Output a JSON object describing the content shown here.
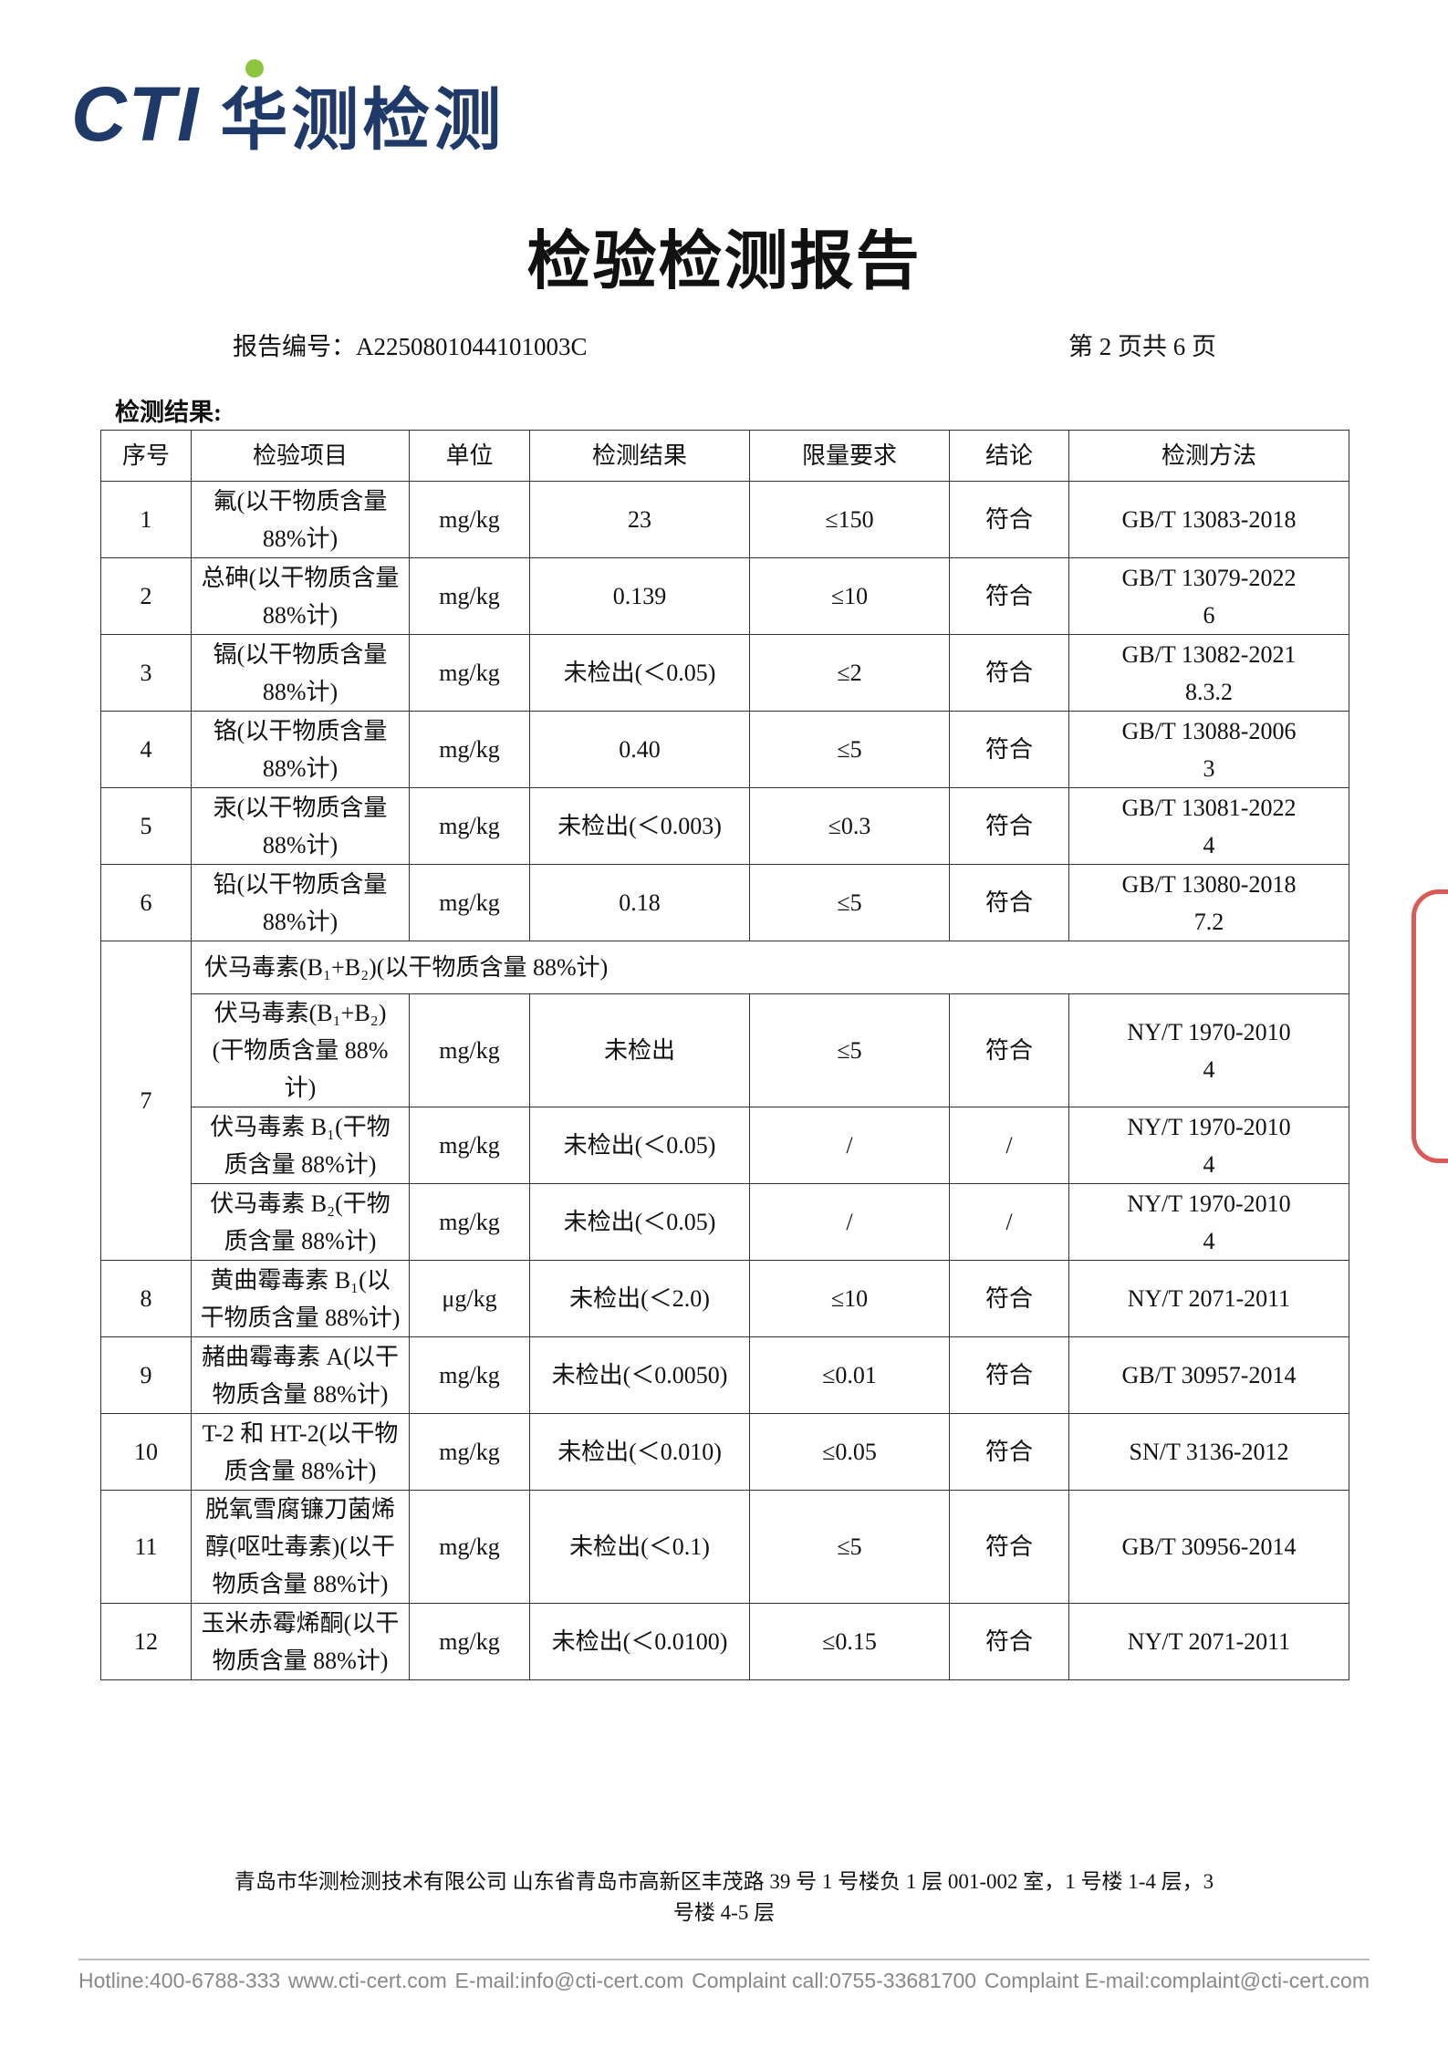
{
  "header": {
    "logo": "CTI",
    "logo_text": "华测检测",
    "title": "检验检测报告",
    "report_no": "报告编号：A2250801044101003C",
    "page": "第 2 页共 6 页"
  },
  "section": "检测结果:",
  "table": {
    "columns": [
      "序号",
      "检验项目",
      "单位",
      "检测结果",
      "限量要求",
      "结论",
      "检测方法"
    ],
    "rows": [
      [
        "1",
        "氟(以干物质含量88%计)",
        "mg/kg",
        "23",
        "≤150",
        "符合",
        "GB/T 13083-2018"
      ],
      [
        "2",
        "总砷(以干物质含量 88%计)",
        "mg/kg",
        "0.139",
        "≤10",
        "符合",
        "GB/T 13079-2022\n6"
      ],
      [
        "3",
        "镉(以干物质含量88%计)",
        "mg/kg",
        "未检出(＜0.05)",
        "≤2",
        "符合",
        "GB/T 13082-2021\n8.3.2"
      ],
      [
        "4",
        "铬(以干物质含量88%计)",
        "mg/kg",
        "0.40",
        "≤5",
        "符合",
        "GB/T 13088-2006\n3"
      ],
      [
        "5",
        "汞(以干物质含量88%计)",
        "mg/kg",
        "未检出(＜0.003)",
        "≤0.3",
        "符合",
        "GB/T 13081-2022\n4"
      ],
      [
        "6",
        "铅(以干物质含量88%计)",
        "mg/kg",
        "0.18",
        "≤5",
        "符合",
        "GB/T 13080-2018\n7.2"
      ],
      {
        "no": "7",
        "heading": "伏马毒素(B₁+B₂)(以干物质含量 88%计)",
        "subrows": [
          [
            "伏马毒素(B₁+B₂)(干物质含量 88%计)",
            "mg/kg",
            "未检出",
            "≤5",
            "符合",
            "NY/T 1970-2010\n4"
          ],
          [
            "伏马毒素 B₁(干物质含量 88%计)",
            "mg/kg",
            "未检出(＜0.05)",
            "/",
            "/",
            "NY/T 1970-2010\n4"
          ],
          [
            "伏马毒素 B₂(干物质含量 88%计)",
            "mg/kg",
            "未检出(＜0.05)",
            "/",
            "/",
            "NY/T 1970-2010\n4"
          ]
        ]
      },
      [
        "8",
        "黄曲霉毒素 B₁(以干物质含量 88%计)",
        "μg/kg",
        "未检出(＜2.0)",
        "≤10",
        "符合",
        "NY/T 2071-2011"
      ],
      [
        "9",
        "赭曲霉毒素 A(以干物质含量 88%计)",
        "mg/kg",
        "未检出(＜0.0050)",
        "≤0.01",
        "符合",
        "GB/T 30957-2014"
      ],
      [
        "10",
        "T-2 和 HT-2(以干物质含量 88%计)",
        "mg/kg",
        "未检出(＜0.010)",
        "≤0.05",
        "符合",
        "SN/T 3136-2012"
      ],
      [
        "11",
        "脱氧雪腐镰刀菌烯醇(呕吐毒素)(以干物质含量 88%计)",
        "mg/kg",
        "未检出(＜0.1)",
        "≤5",
        "符合",
        "GB/T 30956-2014"
      ],
      [
        "12",
        "玉米赤霉烯酮(以干物质含量 88%计)",
        "mg/kg",
        "未检出(＜0.0100)",
        "≤0.15",
        "符合",
        "NY/T 2071-2011"
      ]
    ]
  },
  "footer": {
    "address": "青岛市华测检测技术有限公司  山东省青岛市高新区丰茂路 39 号 1 号楼负 1 层 001-002 室，1 号楼 1-4 层，3 号楼 4-5 层",
    "contacts": [
      "Hotline:400-6788-333",
      "www.cti-cert.com",
      "E-mail:info@cti-cert.com",
      "Complaint call:0755-33681700",
      "Complaint E-mail:complaint@cti-cert.com"
    ]
  }
}
